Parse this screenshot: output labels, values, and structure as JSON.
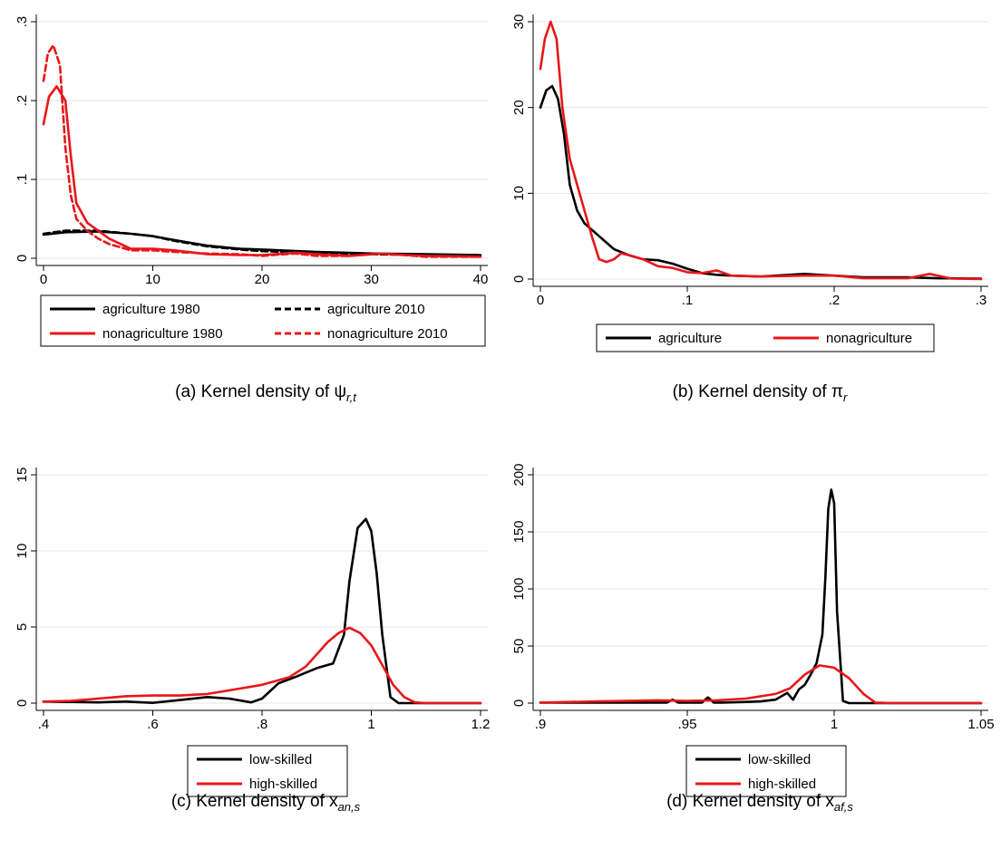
{
  "chart_data": [
    {
      "id": "a",
      "type": "line",
      "caption": "(a) Kernel density of ψr,t",
      "caption_main": "(a) Kernel density of ψ",
      "caption_sub": "r,t",
      "xlim": [
        0,
        40
      ],
      "ylim": [
        0,
        0.3
      ],
      "xticks": [
        "0",
        "10",
        "20",
        "30",
        "40"
      ],
      "yticks": [
        ".3",
        ".2",
        ".1",
        "0"
      ],
      "grid": true,
      "legend_position": "bottom",
      "series": [
        {
          "name": "agriculture 1980",
          "color": "#000000",
          "dash": "solid",
          "x": [
            0,
            2,
            5,
            8,
            10,
            12,
            15,
            18,
            20,
            25,
            30,
            35,
            40
          ],
          "y": [
            0.03,
            0.033,
            0.034,
            0.031,
            0.028,
            0.023,
            0.016,
            0.012,
            0.011,
            0.008,
            0.006,
            0.005,
            0.004
          ]
        },
        {
          "name": "agriculture 2010",
          "color": "#000000",
          "dash": "dash",
          "x": [
            0,
            2,
            5,
            8,
            10,
            12,
            15,
            18,
            20,
            25,
            30,
            35,
            40
          ],
          "y": [
            0.031,
            0.035,
            0.035,
            0.031,
            0.028,
            0.022,
            0.015,
            0.011,
            0.009,
            0.007,
            0.005,
            0.004,
            0.004
          ]
        },
        {
          "name": "nonagriculture 1980",
          "color": "#e8161a",
          "dash": "solid",
          "x": [
            0,
            0.5,
            1.2,
            2,
            2.5,
            3,
            4,
            5,
            6,
            8,
            10,
            12,
            15,
            18,
            20,
            23,
            25,
            28,
            31,
            33,
            35,
            40
          ],
          "y": [
            0.17,
            0.205,
            0.218,
            0.2,
            0.13,
            0.07,
            0.045,
            0.035,
            0.025,
            0.012,
            0.012,
            0.01,
            0.005,
            0.004,
            0.004,
            0.007,
            0.005,
            0.003,
            0.006,
            0.004,
            0.003,
            0.002
          ]
        },
        {
          "name": "nonagriculture 2010",
          "color": "#e8161a",
          "dash": "dash",
          "x": [
            0,
            0.4,
            0.9,
            1.5,
            2,
            2.5,
            3,
            4,
            5,
            6,
            8,
            10,
            12,
            15,
            18,
            20,
            23,
            25,
            28,
            31,
            33,
            35,
            40
          ],
          "y": [
            0.225,
            0.26,
            0.27,
            0.245,
            0.14,
            0.08,
            0.05,
            0.035,
            0.025,
            0.018,
            0.01,
            0.01,
            0.008,
            0.006,
            0.005,
            0.003,
            0.006,
            0.003,
            0.003,
            0.006,
            0.004,
            0.002,
            0.002
          ]
        }
      ]
    },
    {
      "id": "b",
      "type": "line",
      "caption": "(b) Kernel density of πr",
      "caption_main": "(b) Kernel density of π",
      "caption_sub": "r",
      "xlim": [
        0,
        0.3
      ],
      "ylim": [
        0,
        30
      ],
      "xticks": [
        "0",
        ".1",
        ".2",
        ".3"
      ],
      "yticks": [
        "30",
        "20",
        "10",
        "0"
      ],
      "grid": true,
      "legend_position": "bottom",
      "series": [
        {
          "name": "agriculture",
          "color": "#000000",
          "dash": "solid",
          "x": [
            0,
            0.004,
            0.008,
            0.012,
            0.016,
            0.02,
            0.025,
            0.03,
            0.04,
            0.05,
            0.06,
            0.07,
            0.08,
            0.09,
            0.1,
            0.11,
            0.12,
            0.13,
            0.15,
            0.18,
            0.2,
            0.22,
            0.25,
            0.27,
            0.3
          ],
          "y": [
            20,
            22,
            22.5,
            21,
            17,
            11,
            8,
            6.5,
            5,
            3.5,
            2.8,
            2.3,
            2.2,
            1.8,
            1.2,
            0.7,
            0.5,
            0.4,
            0.3,
            0.6,
            0.4,
            0.2,
            0.2,
            0.1,
            0.05
          ]
        },
        {
          "name": "nonagriculture",
          "color": "#e8161a",
          "dash": "solid",
          "x": [
            0,
            0.003,
            0.007,
            0.011,
            0.015,
            0.02,
            0.025,
            0.03,
            0.035,
            0.04,
            0.045,
            0.05,
            0.055,
            0.06,
            0.07,
            0.08,
            0.09,
            0.1,
            0.11,
            0.12,
            0.13,
            0.15,
            0.18,
            0.2,
            0.22,
            0.25,
            0.265,
            0.28,
            0.3
          ],
          "y": [
            24.5,
            28,
            30,
            28,
            20,
            14,
            11,
            8,
            5,
            2.3,
            2.0,
            2.3,
            3,
            2.8,
            2.3,
            1.5,
            1.3,
            0.8,
            0.7,
            1.0,
            0.4,
            0.3,
            0.4,
            0.4,
            0.1,
            0.1,
            0.6,
            0.05,
            0.0
          ]
        }
      ]
    },
    {
      "id": "c",
      "type": "line",
      "caption": "(c) Kernel density of xan,s",
      "caption_main": "(c) Kernel density of x",
      "caption_sub": "an,s",
      "xlim": [
        0.4,
        1.2
      ],
      "ylim": [
        0,
        15
      ],
      "xticks": [
        ".4",
        ".6",
        ".8",
        "1",
        "1.2"
      ],
      "yticks": [
        "15",
        "10",
        "5",
        "0"
      ],
      "grid": true,
      "legend_position": "bottom",
      "series": [
        {
          "name": "low-skilled",
          "color": "#000000",
          "dash": "solid",
          "x": [
            0.4,
            0.45,
            0.5,
            0.55,
            0.6,
            0.65,
            0.7,
            0.74,
            0.78,
            0.8,
            0.83,
            0.86,
            0.88,
            0.9,
            0.93,
            0.95,
            0.96,
            0.975,
            0.99,
            1.0,
            1.01,
            1.02,
            1.035,
            1.05,
            1.1,
            1.2
          ],
          "y": [
            0.1,
            0.08,
            0.05,
            0.1,
            0.02,
            0.2,
            0.4,
            0.3,
            0.05,
            0.3,
            1.3,
            1.7,
            2.0,
            2.3,
            2.6,
            4.5,
            8,
            11.5,
            12.1,
            11.3,
            8.5,
            4.5,
            0.4,
            0.0,
            0.0,
            0.0
          ]
        },
        {
          "name": "high-skilled",
          "color": "#e8161a",
          "dash": "solid",
          "x": [
            0.4,
            0.45,
            0.5,
            0.55,
            0.6,
            0.65,
            0.7,
            0.75,
            0.8,
            0.85,
            0.88,
            0.9,
            0.92,
            0.94,
            0.96,
            0.98,
            1.0,
            1.02,
            1.04,
            1.06,
            1.08,
            1.1,
            1.2
          ],
          "y": [
            0.1,
            0.15,
            0.3,
            0.45,
            0.5,
            0.5,
            0.6,
            0.9,
            1.2,
            1.7,
            2.4,
            3.2,
            4.0,
            4.6,
            4.95,
            4.6,
            3.8,
            2.5,
            1.2,
            0.4,
            0.05,
            0.0,
            0.0
          ]
        }
      ]
    },
    {
      "id": "d",
      "type": "line",
      "caption": "(d) Kernel density of xaf,s",
      "caption_main": "(d) Kernel density of x",
      "caption_sub": "af,s",
      "xlim": [
        0.9,
        1.05
      ],
      "ylim": [
        0,
        200
      ],
      "xticks": [
        ".9",
        ".95",
        "1",
        "1.05"
      ],
      "yticks": [
        "200",
        "150",
        "100",
        "50",
        "0"
      ],
      "grid": true,
      "legend_position": "bottom",
      "series": [
        {
          "name": "low-skilled",
          "color": "#000000",
          "dash": "solid",
          "x": [
            0.9,
            0.93,
            0.943,
            0.945,
            0.947,
            0.95,
            0.955,
            0.957,
            0.959,
            0.962,
            0.97,
            0.975,
            0.98,
            0.984,
            0.986,
            0.988,
            0.99,
            0.992,
            0.994,
            0.996,
            0.997,
            0.998,
            0.999,
            1.0,
            1.001,
            1.003,
            1.005,
            1.05
          ],
          "y": [
            0.5,
            0.5,
            0.5,
            3,
            0.5,
            0.5,
            0.5,
            5,
            0.5,
            0.5,
            1,
            1.5,
            3,
            9,
            3,
            12,
            16,
            25,
            35,
            60,
            110,
            170,
            187,
            175,
            80,
            2,
            0.0,
            0.0
          ]
        },
        {
          "name": "high-skilled",
          "color": "#e8161a",
          "dash": "solid",
          "x": [
            0.9,
            0.92,
            0.94,
            0.95,
            0.96,
            0.97,
            0.98,
            0.985,
            0.99,
            0.995,
            1.0,
            1.005,
            1.01,
            1.014,
            1.02,
            1.05
          ],
          "y": [
            0.5,
            1.5,
            2.5,
            2.0,
            2.5,
            4,
            8,
            13,
            25,
            33,
            31,
            22,
            8,
            0.5,
            0.0,
            0.0
          ]
        }
      ]
    }
  ]
}
